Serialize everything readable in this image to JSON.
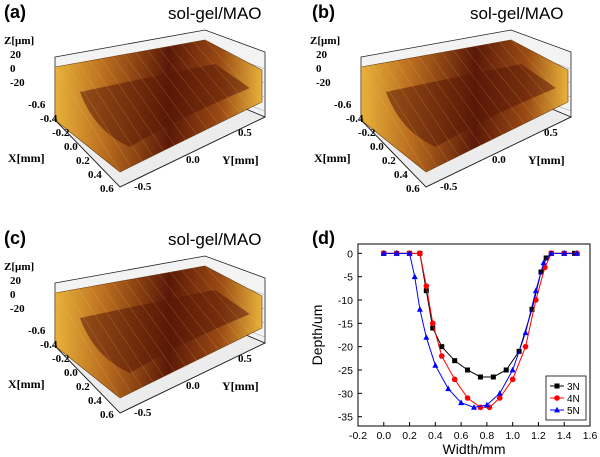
{
  "panels": {
    "a": {
      "label": "(a)",
      "title": "sol-gel/MAO"
    },
    "b": {
      "label": "(b)",
      "title": "sol-gel/MAO"
    },
    "c": {
      "label": "(c)",
      "title": "sol-gel/MAO"
    },
    "d": {
      "label": "(d)"
    }
  },
  "surface_axes": {
    "z_label": "Z[µm]",
    "z_ticks": [
      "20",
      "0",
      "-20"
    ],
    "x_label": "X[mm]",
    "x_ticks": [
      "-0.6",
      "-0.4",
      "-0.2",
      "0.0",
      "0.2",
      "0.4",
      "0.6"
    ],
    "y_label": "Y[mm]",
    "y_ticks": [
      "0.5",
      "0.0",
      "-0.5"
    ]
  },
  "colors": {
    "surface_light": "#e8b23a",
    "surface_dark": "#5a1808",
    "series_3n": "#000000",
    "series_4n": "#ff0000",
    "series_5n": "#0000ff"
  },
  "chart_data": [
    {
      "type": "surface3d",
      "panel": "a",
      "title": "sol-gel/MAO",
      "xlabel": "X[mm]",
      "ylabel": "Y[mm]",
      "zlabel": "Z[µm]",
      "xlim": [
        -0.6,
        0.6
      ],
      "ylim": [
        -0.5,
        0.5
      ],
      "zticks": [
        20,
        0,
        -20
      ]
    },
    {
      "type": "surface3d",
      "panel": "b",
      "title": "sol-gel/MAO",
      "xlabel": "X[mm]",
      "ylabel": "Y[mm]",
      "zlabel": "Z[µm]",
      "xlim": [
        -0.6,
        0.6
      ],
      "ylim": [
        -0.5,
        0.5
      ],
      "zticks": [
        20,
        0,
        -20
      ]
    },
    {
      "type": "surface3d",
      "panel": "c",
      "title": "sol-gel/MAO",
      "xlabel": "X[mm]",
      "ylabel": "Y[mm]",
      "zlabel": "Z[µm]",
      "xlim": [
        -0.6,
        0.6
      ],
      "ylim": [
        -0.5,
        0.5
      ],
      "zticks": [
        20,
        0,
        -20
      ]
    },
    {
      "type": "scatter",
      "panel": "d",
      "xlabel": "Width/mm",
      "ylabel": "Depth/um",
      "xlim": [
        -0.2,
        1.6
      ],
      "ylim": [
        -37,
        2
      ],
      "xticks": [
        "-0.2",
        "0.0",
        "0.2",
        "0.4",
        "0.6",
        "0.8",
        "1.0",
        "1.2",
        "1.4",
        "1.6"
      ],
      "yticks": [
        "0",
        "-5",
        "-10",
        "-15",
        "-20",
        "-25",
        "-30",
        "-35"
      ],
      "legend": "bottom-right",
      "series": [
        {
          "name": "3N",
          "marker": "square",
          "x": [
            0.0,
            0.1,
            0.2,
            0.28,
            0.33,
            0.38,
            0.45,
            0.55,
            0.65,
            0.75,
            0.85,
            0.95,
            1.05,
            1.15,
            1.22,
            1.26,
            1.3,
            1.4,
            1.48
          ],
          "y": [
            0,
            0,
            0,
            0,
            -8,
            -16,
            -20,
            -23,
            -25,
            -26.5,
            -26.5,
            -25,
            -21,
            -12,
            -4,
            -1,
            0,
            0,
            0
          ]
        },
        {
          "name": "4N",
          "marker": "circle",
          "x": [
            0.0,
            0.1,
            0.2,
            0.28,
            0.33,
            0.38,
            0.45,
            0.55,
            0.65,
            0.75,
            0.82,
            0.9,
            1.0,
            1.1,
            1.18,
            1.25,
            1.3,
            1.4,
            1.5
          ],
          "y": [
            0,
            0,
            0,
            0,
            -7,
            -15,
            -22,
            -27,
            -31,
            -33,
            -33,
            -31,
            -27,
            -20,
            -10,
            -3,
            0,
            0,
            0
          ]
        },
        {
          "name": "5N",
          "marker": "triangle",
          "x": [
            0.0,
            0.1,
            0.2,
            0.24,
            0.28,
            0.33,
            0.4,
            0.5,
            0.6,
            0.7,
            0.8,
            0.9,
            1.0,
            1.1,
            1.18,
            1.24,
            1.3,
            1.4,
            1.5
          ],
          "y": [
            0,
            0,
            0,
            -5,
            -12,
            -18,
            -24,
            -29,
            -32,
            -33,
            -32.5,
            -30,
            -25,
            -17,
            -8,
            -2,
            0,
            0,
            0
          ]
        }
      ]
    }
  ]
}
